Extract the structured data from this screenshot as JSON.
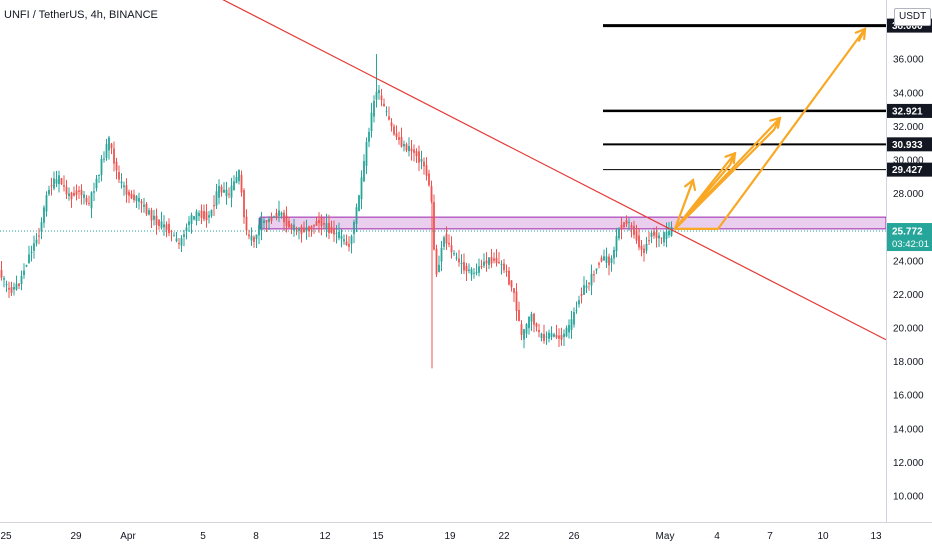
{
  "header": {
    "symbol_title": "UNFI / TetherUS, 4h, BINANCE",
    "currency": "USDT"
  },
  "colors": {
    "up": "#26a69a",
    "down": "#ef5350",
    "trendline": "#e53935",
    "zone_fill": "#e1bee7",
    "zone_border": "#9c27b0",
    "projection": "#f9a825",
    "price_label": "#26a69a",
    "level_label": "#131722"
  },
  "chart_data": {
    "type": "candlestick",
    "title": "UNFI / TetherUS, 4h, BINANCE",
    "ylabel": "",
    "xlabel": "",
    "ylim": [
      8.8,
      39.0
    ],
    "grid": false,
    "y_ticks": [
      "36.000",
      "34.000",
      "32.000",
      "30.000",
      "28.000",
      "26.000",
      "24.000",
      "22.000",
      "20.000",
      "18.000",
      "16.000",
      "14.000",
      "12.000",
      "10.000"
    ],
    "x_ticks": [
      "25",
      "29",
      "Apr",
      "5",
      "8",
      "12",
      "15",
      "19",
      "22",
      "26",
      "May",
      "4",
      "7",
      "10",
      "13"
    ],
    "price_path": [
      [
        0,
        23.4
      ],
      [
        10,
        22.2
      ],
      [
        20,
        22.6
      ],
      [
        30,
        24.3
      ],
      [
        40,
        25.6
      ],
      [
        50,
        28.4
      ],
      [
        60,
        28.9
      ],
      [
        70,
        27.8
      ],
      [
        80,
        28.2
      ],
      [
        90,
        27.3
      ],
      [
        100,
        29.3
      ],
      [
        110,
        31.2
      ],
      [
        120,
        28.8
      ],
      [
        130,
        27.9
      ],
      [
        140,
        27.6
      ],
      [
        150,
        26.8
      ],
      [
        160,
        26.2
      ],
      [
        170,
        25.9
      ],
      [
        180,
        24.9
      ],
      [
        190,
        26.4
      ],
      [
        200,
        26.8
      ],
      [
        210,
        26.6
      ],
      [
        220,
        28.3
      ],
      [
        230,
        27.9
      ],
      [
        240,
        29.3
      ],
      [
        248,
        25.5
      ],
      [
        255,
        25.2
      ],
      [
        262,
        26.3
      ],
      [
        270,
        26.4
      ],
      [
        280,
        26.9
      ],
      [
        290,
        26.1
      ],
      [
        300,
        25.8
      ],
      [
        310,
        25.9
      ],
      [
        320,
        26.4
      ],
      [
        330,
        25.9
      ],
      [
        340,
        25.5
      ],
      [
        350,
        24.8
      ],
      [
        360,
        27.7
      ],
      [
        370,
        31.8
      ],
      [
        378,
        34.3
      ],
      [
        385,
        33.1
      ],
      [
        395,
        31.6
      ],
      [
        405,
        30.8
      ],
      [
        415,
        30.5
      ],
      [
        425,
        29.7
      ],
      [
        432,
        28.2
      ],
      [
        437,
        22.9
      ],
      [
        445,
        25.5
      ],
      [
        455,
        24.3
      ],
      [
        465,
        23.6
      ],
      [
        475,
        23.2
      ],
      [
        485,
        23.9
      ],
      [
        495,
        24.1
      ],
      [
        505,
        23.6
      ],
      [
        515,
        22.1
      ],
      [
        523,
        19.4
      ],
      [
        532,
        20.8
      ],
      [
        542,
        19.4
      ],
      [
        552,
        19.6
      ],
      [
        562,
        19.4
      ],
      [
        572,
        20.2
      ],
      [
        582,
        22.1
      ],
      [
        592,
        22.9
      ],
      [
        602,
        24.2
      ],
      [
        612,
        23.9
      ],
      [
        620,
        25.9
      ],
      [
        628,
        26.4
      ],
      [
        636,
        25.6
      ],
      [
        644,
        24.4
      ],
      [
        652,
        25.7
      ],
      [
        662,
        25.3
      ],
      [
        672,
        25.8
      ]
    ],
    "wick_extremes": {
      "high": 36.3,
      "low": 17.6
    },
    "current_price": "25.772",
    "countdown": "03:42:01",
    "levels": [
      {
        "price": 38.0,
        "label": "38.000"
      },
      {
        "price": 32.921,
        "label": "32.921"
      },
      {
        "price": 30.933,
        "label": "30.933"
      },
      {
        "price": 29.427,
        "label": "29.427"
      }
    ],
    "zone": {
      "from": 25.9,
      "to": 26.6
    },
    "trendline": {
      "from": {
        "x": 208,
        "y": 40.0
      },
      "to": {
        "x": 886,
        "y": 19.3
      }
    },
    "projection_path": [
      [
        675,
        25.9
      ],
      [
        693,
        28.8
      ],
      [
        690,
        28.3
      ],
      [
        675,
        25.9
      ],
      [
        735,
        30.4
      ],
      [
        730,
        29.7
      ],
      [
        675,
        25.9
      ],
      [
        780,
        32.5
      ],
      [
        774,
        31.8
      ],
      [
        675,
        25.9
      ],
      [
        718,
        25.9
      ],
      [
        865,
        37.8
      ],
      [
        859,
        37.1
      ]
    ]
  }
}
